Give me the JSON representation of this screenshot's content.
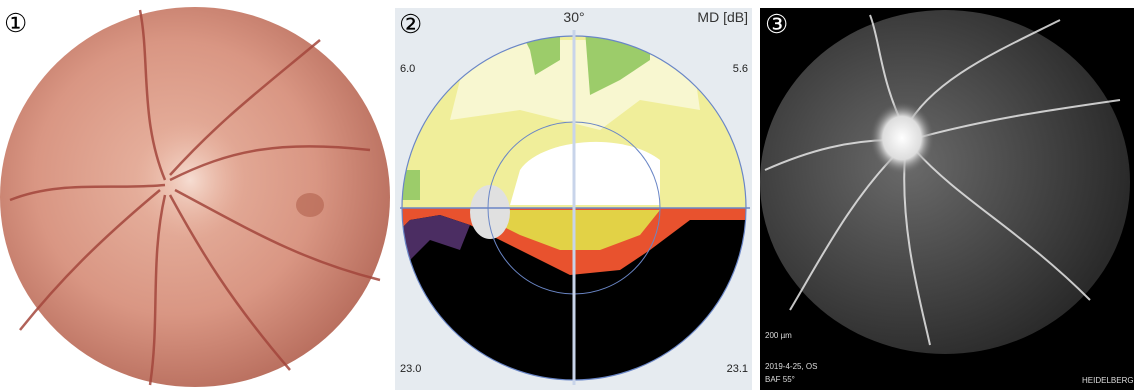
{
  "panels": [
    {
      "label": "①"
    },
    {
      "label": "②",
      "top_label": "30°",
      "unit_label": "MD [dB]",
      "corner_values": {
        "top_left": "6.0",
        "top_right": "5.6",
        "bottom_left": "23.0",
        "bottom_right": "23.1"
      }
    },
    {
      "label": "③",
      "scale_label": "200 µm",
      "date_label": "2019-4-25, OS",
      "mode_label": "BAF 55°",
      "brand_label": "HEIDELBERG ENGINEERING"
    }
  ]
}
